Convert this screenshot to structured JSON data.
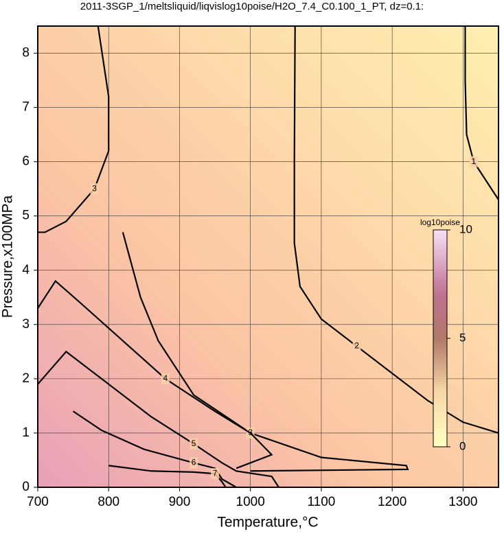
{
  "chart_data": {
    "type": "contour",
    "title": "2011-3SGP_1/meltsliquid/liqvislog10poise/H2O_7.4_C0.100_1_PT, dz=0.1:",
    "x_label": "Temperature,°C",
    "y_label": "Pressure,x100MPa",
    "xlim": [
      700,
      1350
    ],
    "ylim": [
      0,
      8.5
    ],
    "xticks": [
      700,
      800,
      900,
      1000,
      1100,
      1200,
      1300
    ],
    "yticks": [
      0,
      1,
      2,
      3,
      4,
      5,
      6,
      7,
      8
    ],
    "grid": true,
    "contours": [
      {
        "level": 1,
        "x": [
          1303,
          1303,
          1305,
          1315,
          1335,
          1350
        ],
        "y": [
          8.5,
          7.5,
          6.5,
          6.0,
          5.6,
          5.3
        ]
      },
      {
        "level": 2,
        "x": [
          1063,
          1062,
          1062,
          1070,
          1100,
          1150,
          1200,
          1250,
          1300,
          1350
        ],
        "y": [
          8.5,
          6,
          4.5,
          3.7,
          3.1,
          2.6,
          2.1,
          1.6,
          1.2,
          1.0
        ]
      },
      {
        "level": 3,
        "x": [
          785,
          800,
          800,
          780,
          740,
          710,
          700
        ],
        "y": [
          8.5,
          7.2,
          6.2,
          5.5,
          4.9,
          4.7,
          4.7
        ]
      },
      {
        "level": 3,
        "x": [
          820,
          845,
          870,
          920,
          1000,
          1100,
          1220,
          1222,
          1000
        ],
        "y": [
          4.7,
          3.5,
          2.7,
          1.7,
          1.0,
          0.55,
          0.4,
          0.33,
          0.3
        ]
      },
      {
        "level": 4,
        "x": [
          700,
          725,
          760,
          820,
          880,
          950,
          1000,
          1030,
          980
        ],
        "y": [
          3.3,
          3.8,
          3.4,
          2.7,
          2.0,
          1.4,
          1.0,
          0.6,
          0.35
        ]
      },
      {
        "level": 5,
        "x": [
          700,
          740,
          800,
          860,
          920,
          960,
          980,
          1030,
          1040
        ],
        "y": [
          1.9,
          2.5,
          1.9,
          1.3,
          0.8,
          0.45,
          0.3,
          0.2,
          0
        ]
      },
      {
        "level": 6,
        "x": [
          750,
          790,
          850,
          920,
          950,
          960,
          980
        ],
        "y": [
          1.4,
          1.05,
          0.7,
          0.45,
          0.35,
          0.15,
          0
        ]
      },
      {
        "level": 7,
        "x": [
          800,
          860,
          920,
          950,
          960,
          965
        ],
        "y": [
          0.4,
          0.3,
          0.28,
          0.25,
          0.1,
          0
        ]
      }
    ],
    "colorbar": {
      "label": "log10poise",
      "clim": [
        0,
        10
      ],
      "ticks": [
        0,
        5,
        10
      ]
    }
  }
}
